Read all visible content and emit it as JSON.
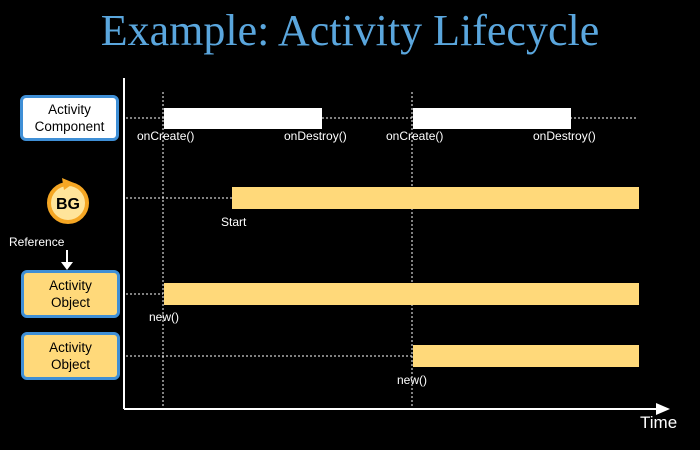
{
  "slide": {
    "title": "Example: Activity Lifecycle",
    "colors": {
      "background": "#000000",
      "title": "#5aa6dd",
      "box_border": "#3f8fd6",
      "component_bar": "#ffffff",
      "object_bar": "#ffd97a",
      "bg_icon_ring": "#f5a623"
    }
  },
  "rows": {
    "component": {
      "label": "Activity\nComponent"
    },
    "background_service": {
      "icon": "bg-icon",
      "icon_text": "BG"
    },
    "reference_label": "Reference",
    "object_1": {
      "label": "Activity\nObject"
    },
    "object_2": {
      "label": "Activity\nObject"
    }
  },
  "chart_data": {
    "type": "timeline",
    "xlabel": "Time",
    "lanes": [
      {
        "bars": [
          {
            "start": "onCreate()",
            "end": "onDestroy()"
          },
          {
            "start": "onCreate()",
            "end": "onDestroy()"
          }
        ]
      },
      {
        "bars": [
          {
            "start": "Start"
          }
        ]
      },
      {
        "bars": [
          {
            "start": "new()"
          }
        ]
      },
      {
        "bars": [
          {
            "start": "new()"
          }
        ]
      }
    ],
    "annotations": {
      "c1_create": "onCreate()",
      "c1_destroy": "onDestroy()",
      "c2_create": "onCreate()",
      "c2_destroy": "onDestroy()",
      "bg_start": "Start",
      "o1_new": "new()",
      "o2_new": "new()"
    }
  }
}
